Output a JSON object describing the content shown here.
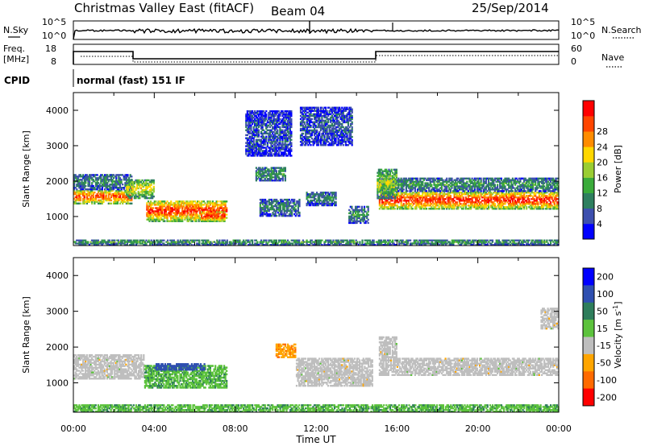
{
  "header": {
    "title": "Christmas Valley East (fitACF)",
    "beam": "Beam 04",
    "date": "25/Sep/2014"
  },
  "nsky_panel": {
    "left_label": "N.Sky",
    "right_label": "N.Search",
    "left_ticks": [
      "10^5",
      "10^0"
    ],
    "right_ticks": [
      "10^5",
      "10^0"
    ]
  },
  "freq_panel": {
    "left_label_1": "Freq.",
    "left_label_2": "[MHz]",
    "right_label": "Nave",
    "left_ticks": [
      "18",
      "8"
    ],
    "right_ticks": [
      "60",
      "0"
    ]
  },
  "cpid": {
    "label": "CPID",
    "value": "normal (fast) 151 IF"
  },
  "colors": {
    "power_scale": [
      "#0000ff",
      "#3d4fae",
      "#2e7f5f",
      "#3aab3a",
      "#9acd32",
      "#ffd700",
      "#ff8c00",
      "#ff4500",
      "#ff0000"
    ],
    "velocity_scale": [
      "#0000ff",
      "#2f4fb0",
      "#2e7d5b",
      "#5cc23c",
      "#bebebe",
      "#ffa500",
      "#ff6a00",
      "#ff0000"
    ],
    "ground_scatter": "#bebebe"
  },
  "chart_data": [
    {
      "type": "heatmap",
      "name": "power",
      "x_range": [
        "00:00",
        "24:00"
      ],
      "ylabel": "Slant Range [km]",
      "yticks": [
        1000,
        2000,
        3000,
        4000
      ],
      "ylim": [
        180,
        4500
      ],
      "colorbar_label": "Power [dB]",
      "colorbar_ticks": [
        "4",
        "8",
        "12",
        "16",
        "20",
        "24",
        "28"
      ],
      "regions": [
        {
          "t0": 0.0,
          "t1": 2.9,
          "r0": 1350,
          "r1": 1750,
          "level": 0.88
        },
        {
          "t0": 0.0,
          "t1": 2.9,
          "r0": 1750,
          "r1": 2200,
          "level": 0.3
        },
        {
          "t0": 2.6,
          "t1": 4.0,
          "r0": 1500,
          "r1": 2050,
          "level": 0.6
        },
        {
          "t0": 3.6,
          "t1": 7.6,
          "r0": 850,
          "r1": 1450,
          "level": 0.92
        },
        {
          "t0": 6.3,
          "t1": 7.5,
          "r0": 850,
          "r1": 1150,
          "level": 0.98
        },
        {
          "t0": 9.0,
          "t1": 10.5,
          "r0": 2000,
          "r1": 2400,
          "level": 0.35
        },
        {
          "t0": 9.2,
          "t1": 11.2,
          "r0": 1000,
          "r1": 1500,
          "level": 0.3
        },
        {
          "t0": 11.5,
          "t1": 13.0,
          "r0": 1300,
          "r1": 1700,
          "level": 0.3
        },
        {
          "t0": 13.6,
          "t1": 14.6,
          "r0": 800,
          "r1": 1300,
          "level": 0.35
        },
        {
          "t0": 15.1,
          "t1": 24.0,
          "r0": 1200,
          "r1": 1700,
          "level": 0.95
        },
        {
          "t0": 15.1,
          "t1": 24.0,
          "r0": 1700,
          "r1": 2100,
          "level": 0.35
        },
        {
          "t0": 15.0,
          "t1": 16.0,
          "r0": 1500,
          "r1": 2350,
          "level": 0.55
        },
        {
          "t0": 8.5,
          "t1": 10.8,
          "r0": 2700,
          "r1": 4000,
          "level": 0.2
        },
        {
          "t0": 11.2,
          "t1": 13.8,
          "r0": 3000,
          "r1": 4100,
          "level": 0.2
        },
        {
          "t0": 0.0,
          "t1": 24.0,
          "r0": 180,
          "r1": 350,
          "level": 0.35
        }
      ]
    },
    {
      "type": "heatmap",
      "name": "velocity",
      "x_range": [
        "00:00",
        "24:00"
      ],
      "xlabel": "Time UT",
      "xticks": [
        "00:00",
        "04:00",
        "08:00",
        "12:00",
        "16:00",
        "20:00",
        "00:00"
      ],
      "ylabel": "Slant Range [km]",
      "yticks": [
        1000,
        2000,
        3000,
        4000
      ],
      "ylim": [
        180,
        4500
      ],
      "colorbar_label": "Velocity [m s",
      "colorbar_sup": "-1",
      "colorbar_suffix": "]",
      "colorbar_ticks": [
        "200",
        "100",
        "50",
        "15",
        "-15",
        "-50",
        "-100",
        "-200"
      ],
      "regions": [
        {
          "t0": 0.0,
          "t1": 3.5,
          "r0": 1100,
          "r1": 1800,
          "velocity": 0
        },
        {
          "t0": 3.5,
          "t1": 7.6,
          "r0": 850,
          "r1": 1500,
          "velocity": 40
        },
        {
          "t0": 4.0,
          "t1": 6.5,
          "r0": 1350,
          "r1": 1550,
          "velocity": 150
        },
        {
          "t0": 10.0,
          "t1": 11.0,
          "r0": 1700,
          "r1": 2100,
          "velocity": -40
        },
        {
          "t0": 11.0,
          "t1": 14.8,
          "r0": 900,
          "r1": 1700,
          "velocity": 0
        },
        {
          "t0": 15.1,
          "t1": 24.0,
          "r0": 1200,
          "r1": 1700,
          "velocity": 0
        },
        {
          "t0": 15.1,
          "t1": 16.0,
          "r0": 1700,
          "r1": 2300,
          "velocity": 0
        },
        {
          "t0": 0.0,
          "t1": 24.0,
          "r0": 180,
          "r1": 400,
          "velocity": 40
        },
        {
          "t0": 23.1,
          "t1": 24.0,
          "r0": 2500,
          "r1": 3100,
          "velocity": 0
        }
      ]
    }
  ]
}
